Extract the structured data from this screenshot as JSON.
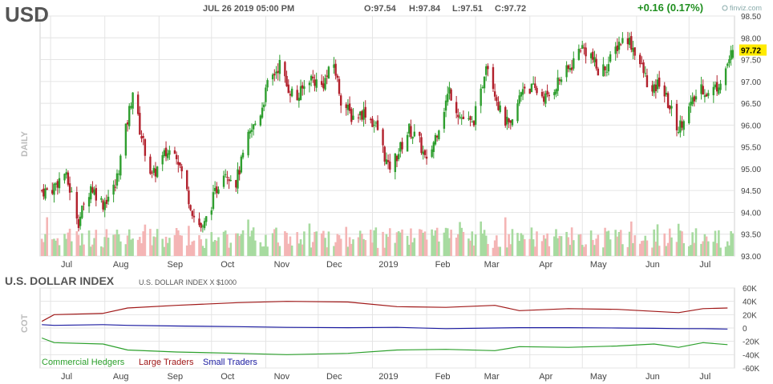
{
  "header": {
    "symbol": "USD",
    "datetime": "JUL 26 2019 05:00 PM",
    "open": "O:97.54",
    "high": "H:97.84",
    "low": "L:97.51",
    "close": "C:97.72",
    "change": "+0.16 (0.17%)",
    "brand": "finviz.com",
    "period_label": "DAILY"
  },
  "cot": {
    "title": "U.S. DOLLAR INDEX",
    "subtitle": "U.S. DOLLAR INDEX X $1000",
    "side_label": "COT",
    "legend": [
      "Commercial Hedgers",
      "Large Traders",
      "Small Traders"
    ]
  },
  "colors": {
    "up": "#2e9e2e",
    "down": "#b2202c",
    "vol_up": "#a7dba0",
    "vol_down": "#f4b5b5",
    "grid": "#e4e4e4",
    "commercial": "#2ca02c",
    "large": "#a01818",
    "small": "#1a1aa0",
    "change": "#1f8f1f",
    "last_price_bg": "#ffea00"
  },
  "chart_data": [
    {
      "type": "candlestick",
      "title": "USD",
      "ylim": [
        93.0,
        98.5
      ],
      "y_ticks": [
        "98.50",
        "98.00",
        "97.50",
        "97.00",
        "96.50",
        "96.00",
        "95.50",
        "95.00",
        "94.50",
        "94.00",
        "93.50",
        "93.00"
      ],
      "x_labels": [
        "Jul",
        "Aug",
        "Sep",
        "Oct",
        "Nov",
        "Dec",
        "2019",
        "Feb",
        "Mar",
        "Apr",
        "May",
        "Jun",
        "Jul"
      ],
      "last_price": "97.72",
      "close_path": [
        [
          "2018-07-01",
          94.5
        ],
        [
          "2018-07-09",
          94.9
        ],
        [
          "2018-07-13",
          94.4
        ],
        [
          "2018-07-17",
          93.8
        ],
        [
          "2018-07-24",
          94.6
        ],
        [
          "2018-07-31",
          94.2
        ],
        [
          "2018-08-07",
          94.6
        ],
        [
          "2018-08-14",
          96.1
        ],
        [
          "2018-08-17",
          96.8
        ],
        [
          "2018-08-21",
          95.9
        ],
        [
          "2018-08-28",
          94.8
        ],
        [
          "2018-09-04",
          95.3
        ],
        [
          "2018-09-10",
          95.5
        ],
        [
          "2018-09-14",
          94.9
        ],
        [
          "2018-09-21",
          93.9
        ],
        [
          "2018-09-26",
          93.6
        ],
        [
          "2018-10-01",
          94.2
        ],
        [
          "2018-10-08",
          95.0
        ],
        [
          "2018-10-15",
          94.7
        ],
        [
          "2018-10-22",
          95.7
        ],
        [
          "2018-10-29",
          96.3
        ],
        [
          "2018-11-02",
          96.9
        ],
        [
          "2018-11-09",
          97.4
        ],
        [
          "2018-11-13",
          96.9
        ],
        [
          "2018-11-19",
          96.6
        ],
        [
          "2018-11-26",
          97.1
        ],
        [
          "2018-12-03",
          96.9
        ],
        [
          "2018-12-10",
          97.4
        ],
        [
          "2018-12-14",
          96.6
        ],
        [
          "2018-12-20",
          96.2
        ],
        [
          "2018-12-28",
          96.3
        ],
        [
          "2019-01-04",
          95.9
        ],
        [
          "2019-01-10",
          95.0
        ],
        [
          "2019-01-15",
          95.3
        ],
        [
          "2019-01-22",
          95.9
        ],
        [
          "2019-01-28",
          95.6
        ],
        [
          "2019-02-01",
          95.1
        ],
        [
          "2019-02-08",
          96.0
        ],
        [
          "2019-02-14",
          96.8
        ],
        [
          "2019-02-20",
          96.2
        ],
        [
          "2019-02-27",
          96.0
        ],
        [
          "2019-03-04",
          96.7
        ],
        [
          "2019-03-07",
          97.5
        ],
        [
          "2019-03-12",
          96.8
        ],
        [
          "2019-03-15",
          96.3
        ],
        [
          "2019-03-21",
          95.9
        ],
        [
          "2019-03-28",
          96.9
        ],
        [
          "2019-04-04",
          96.8
        ],
        [
          "2019-04-11",
          96.6
        ],
        [
          "2019-04-17",
          97.0
        ],
        [
          "2019-04-24",
          97.3
        ],
        [
          "2019-04-30",
          97.8
        ],
        [
          "2019-05-06",
          97.6
        ],
        [
          "2019-05-10",
          97.2
        ],
        [
          "2019-05-16",
          97.4
        ],
        [
          "2019-05-22",
          97.9
        ],
        [
          "2019-05-27",
          98.0
        ],
        [
          "2019-05-31",
          97.7
        ],
        [
          "2019-06-05",
          97.2
        ],
        [
          "2019-06-10",
          96.7
        ],
        [
          "2019-06-14",
          97.0
        ],
        [
          "2019-06-19",
          96.5
        ],
        [
          "2019-06-25",
          95.9
        ],
        [
          "2019-06-28",
          96.2
        ],
        [
          "2019-07-03",
          96.5
        ],
        [
          "2019-07-08",
          96.9
        ],
        [
          "2019-07-12",
          96.7
        ],
        [
          "2019-07-17",
          96.9
        ],
        [
          "2019-07-22",
          97.3
        ],
        [
          "2019-07-26",
          97.72
        ]
      ]
    },
    {
      "type": "line",
      "title": "U.S. DOLLAR INDEX",
      "ylim": [
        -60000,
        60000
      ],
      "y_ticks": [
        "60K",
        "40K",
        "20K",
        "0",
        "-20K",
        "-40K",
        "-60K"
      ],
      "x_labels": [
        "Jul",
        "Aug",
        "Sep",
        "Oct",
        "Nov",
        "Dec",
        "2019",
        "Feb",
        "Mar",
        "Apr",
        "May",
        "Jun",
        "Jul"
      ],
      "series": [
        {
          "name": "Commercial Hedgers",
          "points": [
            [
              "2018-06-26",
              -15000
            ],
            [
              "2018-07-03",
              -22000
            ],
            [
              "2018-07-31",
              -24000
            ],
            [
              "2018-08-14",
              -33000
            ],
            [
              "2018-09-11",
              -36000
            ],
            [
              "2018-10-16",
              -38000
            ],
            [
              "2018-11-13",
              -40000
            ],
            [
              "2018-12-18",
              -38000
            ],
            [
              "2019-01-15",
              -33000
            ],
            [
              "2019-02-12",
              -32000
            ],
            [
              "2019-03-12",
              -34000
            ],
            [
              "2019-03-26",
              -28000
            ],
            [
              "2019-04-23",
              -29000
            ],
            [
              "2019-05-21",
              -27000
            ],
            [
              "2019-06-11",
              -24000
            ],
            [
              "2019-06-25",
              -29000
            ],
            [
              "2019-07-09",
              -22000
            ],
            [
              "2019-07-23",
              -25000
            ]
          ]
        },
        {
          "name": "Large Traders",
          "points": [
            [
              "2018-06-26",
              10000
            ],
            [
              "2018-07-03",
              20000
            ],
            [
              "2018-07-31",
              22000
            ],
            [
              "2018-08-14",
              30000
            ],
            [
              "2018-09-11",
              34000
            ],
            [
              "2018-10-16",
              38000
            ],
            [
              "2018-11-13",
              40000
            ],
            [
              "2018-12-18",
              39000
            ],
            [
              "2019-01-15",
              32000
            ],
            [
              "2019-02-12",
              31000
            ],
            [
              "2019-03-12",
              34000
            ],
            [
              "2019-03-26",
              26000
            ],
            [
              "2019-04-23",
              29000
            ],
            [
              "2019-05-21",
              28000
            ],
            [
              "2019-06-11",
              25000
            ],
            [
              "2019-06-25",
              23000
            ],
            [
              "2019-07-09",
              29000
            ],
            [
              "2019-07-23",
              30000
            ]
          ]
        },
        {
          "name": "Small Traders",
          "points": [
            [
              "2018-06-26",
              5000
            ],
            [
              "2018-07-03",
              4000
            ],
            [
              "2018-07-31",
              5000
            ],
            [
              "2018-08-14",
              4000
            ],
            [
              "2018-09-11",
              3000
            ],
            [
              "2018-10-16",
              2000
            ],
            [
              "2018-11-13",
              1000
            ],
            [
              "2018-12-18",
              500
            ],
            [
              "2019-01-15",
              1000
            ],
            [
              "2019-02-12",
              -1000
            ],
            [
              "2019-03-12",
              0
            ],
            [
              "2019-03-26",
              500
            ],
            [
              "2019-04-23",
              500
            ],
            [
              "2019-05-21",
              0
            ],
            [
              "2019-06-11",
              -500
            ],
            [
              "2019-06-25",
              -1000
            ],
            [
              "2019-07-09",
              -1000
            ],
            [
              "2019-07-23",
              -1500
            ]
          ]
        }
      ]
    }
  ]
}
